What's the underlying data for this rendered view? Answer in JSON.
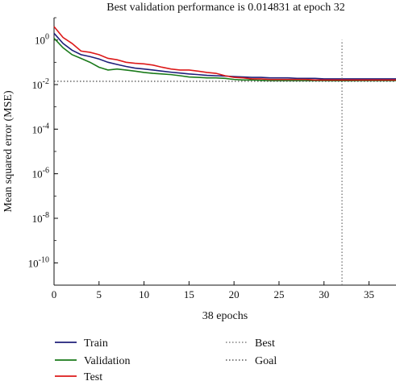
{
  "chart_data": {
    "type": "line",
    "title": "Best validation performance is 0.014831 at epoch 32",
    "xlabel": "38 epochs",
    "ylabel": "Mean squared error (MSE)",
    "yscale": "log",
    "xlim": [
      0,
      38
    ],
    "ylim": [
      1e-11,
      10
    ],
    "x_ticks": [
      0,
      5,
      10,
      15,
      20,
      25,
      30,
      35
    ],
    "y_ticks": [
      {
        "value": 1,
        "label": "10",
        "exp": "0"
      },
      {
        "value": 0.01,
        "label": "10",
        "exp": "-2"
      },
      {
        "value": 0.0001,
        "label": "10",
        "exp": "-4"
      },
      {
        "value": 1e-06,
        "label": "10",
        "exp": "-6"
      },
      {
        "value": 1e-08,
        "label": "10",
        "exp": "-8"
      },
      {
        "value": 1e-10,
        "label": "10",
        "exp": "-10"
      }
    ],
    "series": [
      {
        "name": "Train",
        "color": "#1f1f7a",
        "style": "solid",
        "x": [
          0,
          1,
          2,
          3,
          4,
          5,
          6,
          7,
          8,
          9,
          10,
          11,
          12,
          13,
          14,
          15,
          16,
          17,
          18,
          19,
          20,
          21,
          22,
          23,
          24,
          25,
          26,
          27,
          28,
          29,
          30,
          31,
          32,
          33,
          34,
          35,
          36,
          37,
          38
        ],
        "y": [
          2.0,
          0.7,
          0.35,
          0.22,
          0.18,
          0.14,
          0.1,
          0.08,
          0.065,
          0.055,
          0.05,
          0.045,
          0.04,
          0.036,
          0.033,
          0.03,
          0.028,
          0.026,
          0.025,
          0.024,
          0.023,
          0.022,
          0.021,
          0.021,
          0.02,
          0.02,
          0.02,
          0.019,
          0.019,
          0.019,
          0.018,
          0.018,
          0.018,
          0.018,
          0.018,
          0.018,
          0.018,
          0.018,
          0.018
        ]
      },
      {
        "name": "Validation",
        "color": "#1a7a1a",
        "style": "solid",
        "x": [
          0,
          1,
          2,
          3,
          4,
          5,
          6,
          7,
          8,
          9,
          10,
          11,
          12,
          13,
          14,
          15,
          16,
          17,
          18,
          19,
          20,
          21,
          22,
          23,
          24,
          25,
          26,
          27,
          28,
          29,
          30,
          31,
          32,
          33,
          34,
          35,
          36,
          37,
          38
        ],
        "y": [
          1.2,
          0.45,
          0.22,
          0.15,
          0.1,
          0.06,
          0.045,
          0.05,
          0.045,
          0.04,
          0.035,
          0.032,
          0.03,
          0.028,
          0.025,
          0.022,
          0.021,
          0.02,
          0.02,
          0.019,
          0.017,
          0.016,
          0.016,
          0.0155,
          0.015,
          0.015,
          0.015,
          0.015,
          0.015,
          0.015,
          0.015,
          0.0149,
          0.014831,
          0.0149,
          0.015,
          0.015,
          0.015,
          0.015,
          0.015
        ]
      },
      {
        "name": "Test",
        "color": "#dd1a1a",
        "style": "solid",
        "x": [
          0,
          1,
          2,
          3,
          4,
          5,
          6,
          7,
          8,
          9,
          10,
          11,
          12,
          13,
          14,
          15,
          16,
          17,
          18,
          19,
          20,
          21,
          22,
          23,
          24,
          25,
          26,
          27,
          28,
          29,
          30,
          31,
          32,
          33,
          34,
          35,
          36,
          37,
          38
        ],
        "y": [
          4.0,
          1.3,
          0.7,
          0.32,
          0.28,
          0.22,
          0.15,
          0.13,
          0.1,
          0.09,
          0.085,
          0.075,
          0.06,
          0.05,
          0.045,
          0.045,
          0.04,
          0.035,
          0.032,
          0.025,
          0.021,
          0.02,
          0.018,
          0.018,
          0.017,
          0.017,
          0.017,
          0.017,
          0.017,
          0.016,
          0.016,
          0.016,
          0.016,
          0.016,
          0.016,
          0.016,
          0.016,
          0.016,
          0.016
        ]
      },
      {
        "name": "Best",
        "color": "#666666",
        "style": "dotted",
        "marker": "vertical line at best epoch",
        "x": [
          32,
          32
        ],
        "y": [
          1e-11,
          1.0
        ]
      },
      {
        "name": "Goal",
        "color": "#333333",
        "style": "dotted",
        "marker": "horizontal line at goal",
        "x": [
          0,
          38
        ],
        "y": [
          0.014,
          0.014
        ]
      }
    ],
    "legend_position": "bottom",
    "grid": false
  }
}
